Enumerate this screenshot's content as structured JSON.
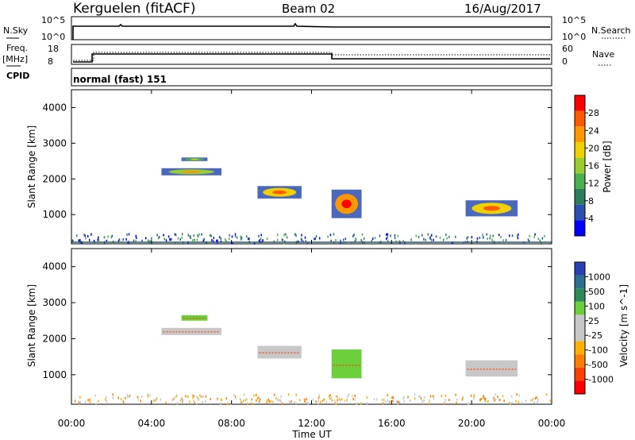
{
  "header": {
    "station": "Kerguelen (fitACF)",
    "beam": "Beam 02",
    "date": "16/Aug/2017"
  },
  "noise_panel": {
    "left_label": "N.Sky",
    "left_ticks": [
      "10^5",
      "10^0"
    ],
    "right_label": "N.Search",
    "right_ticks": [
      "10^5",
      "10^0"
    ]
  },
  "freq_panel": {
    "left_label_1": "Freq.",
    "left_label_2": "[MHz]",
    "left_ticks": [
      "18",
      "8"
    ],
    "right_label": "Nave",
    "right_ticks": [
      "60",
      "0"
    ]
  },
  "cpid_panel": {
    "label": "CPID",
    "mode": "normal (fast) 151"
  },
  "x_axis": {
    "ticks": [
      "00:00",
      "04:00",
      "08:00",
      "12:00",
      "16:00",
      "20:00",
      "00:00"
    ],
    "label": "Time UT"
  },
  "colors": {
    "power": [
      "#0000ff",
      "#2a4fb0",
      "#2e7d5a",
      "#4caf50",
      "#9acd32",
      "#f0d000",
      "#ff9800",
      "#ff5a00",
      "#ff0000"
    ],
    "velocity": [
      "#2a3fb0",
      "#2e6e8e",
      "#2e8b57",
      "#6ccf3c",
      "#c8c8c8",
      "#c8c8c8",
      "#ffb000",
      "#ff8000",
      "#ff4000",
      "#ff0000"
    ]
  },
  "chart_data": [
    {
      "type": "heatmap",
      "name": "power",
      "ylabel": "Slant Range [km]",
      "yticks": [
        "1000",
        "2000",
        "3000",
        "4000"
      ],
      "ylim": [
        180,
        4500
      ],
      "xlim": [
        0,
        24
      ],
      "colorbar_label": "Power [dB]",
      "colorbar_ticks": [
        "4",
        "8",
        "12",
        "16",
        "20",
        "24",
        "28"
      ],
      "clim": [
        0,
        32
      ],
      "patches": [
        {
          "t0": 4.5,
          "t1": 7.5,
          "r0": 2100,
          "r1": 2300,
          "level": 16
        },
        {
          "t0": 5.5,
          "t1": 6.8,
          "r0": 2500,
          "r1": 2600,
          "level": 10
        },
        {
          "t0": 9.3,
          "t1": 11.5,
          "r0": 1450,
          "r1": 1800,
          "level": 20
        },
        {
          "t0": 13.0,
          "t1": 14.5,
          "r0": 900,
          "r1": 1700,
          "level": 24
        },
        {
          "t0": 19.7,
          "t1": 22.3,
          "r0": 950,
          "r1": 1400,
          "level": 18
        }
      ]
    },
    {
      "type": "heatmap",
      "name": "velocity",
      "ylabel": "Slant Range [km]",
      "yticks": [
        "1000",
        "2000",
        "3000",
        "4000"
      ],
      "ylim": [
        180,
        4500
      ],
      "xlim": [
        0,
        24
      ],
      "colorbar_label": "Velocity [m s^-1]",
      "colorbar_ticks": [
        "1000",
        "500",
        "100",
        "25",
        "-25",
        "-100",
        "-500",
        "-1000"
      ],
      "patches": [
        {
          "t0": 4.5,
          "t1": 7.5,
          "r0": 2100,
          "r1": 2300,
          "level": 0
        },
        {
          "t0": 5.5,
          "t1": 6.8,
          "r0": 2500,
          "r1": 2650,
          "level": 100
        },
        {
          "t0": 9.3,
          "t1": 11.5,
          "r0": 1450,
          "r1": 1800,
          "level": 0
        },
        {
          "t0": 13.0,
          "t1": 14.5,
          "r0": 900,
          "r1": 1700,
          "level": 100
        },
        {
          "t0": 19.7,
          "t1": 22.3,
          "r0": 950,
          "r1": 1400,
          "level": -25
        }
      ]
    }
  ]
}
